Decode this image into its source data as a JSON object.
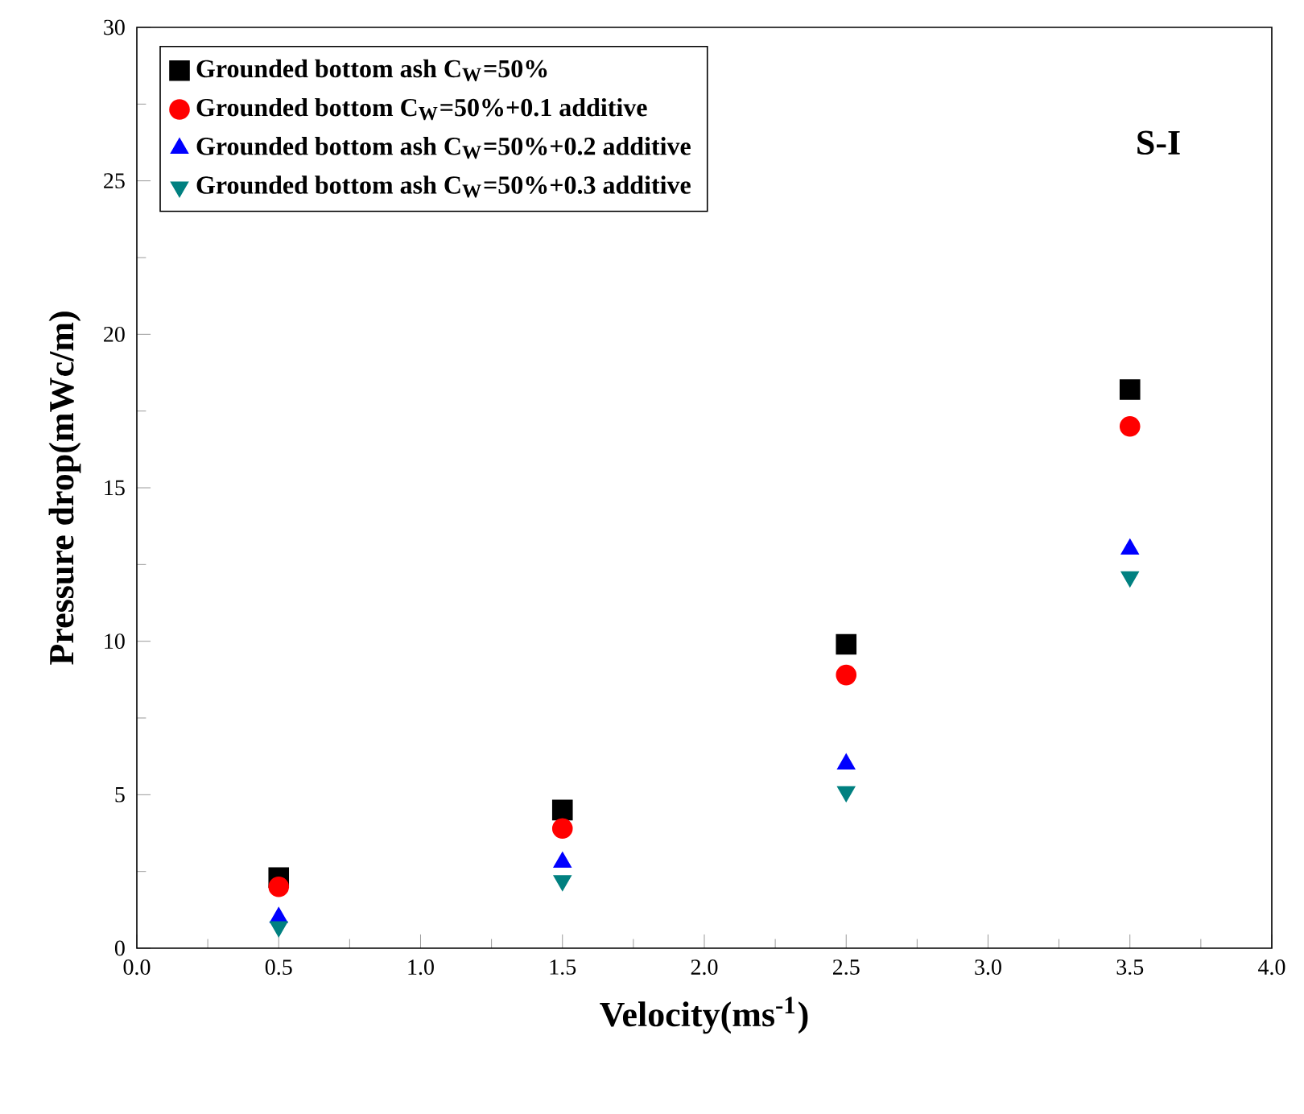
{
  "chart_data": {
    "type": "scatter",
    "xlabel": "Velocity(ms$^{-1}$)",
    "ylabel": "Pressure drop(mWc/m)",
    "x": [
      0.5,
      1.5,
      2.5,
      3.5
    ],
    "series": [
      {
        "name": "Grounded bottom ash C$_{W}$=50%",
        "color": "#000000",
        "marker": "square",
        "values": [
          2.3,
          4.5,
          9.9,
          18.2
        ]
      },
      {
        "name": "Grounded bottom C$_{W}$=50%+0.1 additive",
        "color": "#ff0000",
        "marker": "circle",
        "values": [
          2.0,
          3.9,
          8.9,
          17.0
        ]
      },
      {
        "name": "Grounded bottom ash C$_{W}$=50%+0.2 additive",
        "color": "#0000ff",
        "marker": "triangle",
        "values": [
          1.0,
          2.8,
          6.0,
          13.0
        ]
      },
      {
        "name": "Grounded bottom ash C$_{W}$=50%+0.3 additive",
        "color": "#008080",
        "marker": "triangle-down",
        "values": [
          0.7,
          2.2,
          5.1,
          12.1
        ]
      }
    ],
    "annotations": [
      "S-I"
    ],
    "xlim": [
      0.0,
      4.0
    ],
    "ylim": [
      0,
      30
    ],
    "xticks": [
      {
        "value": 0.0,
        "label": "0.0"
      },
      0.5,
      {
        "value": 1.0,
        "label": "1.0"
      },
      1.5,
      {
        "value": 2.0,
        "label": "2.0"
      },
      2.5,
      {
        "value": 3.0,
        "label": "3.0"
      },
      3.5,
      {
        "value": 4.0,
        "label": "4.0"
      }
    ],
    "yticks": [
      0,
      5,
      10,
      15,
      20,
      25,
      30
    ],
    "grid": false,
    "legend": "top left"
  }
}
